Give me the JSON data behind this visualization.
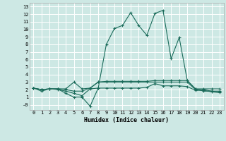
{
  "xlabel": "Humidex (Indice chaleur)",
  "bg_color": "#cde8e4",
  "grid_color": "#ffffff",
  "line_color": "#1a6b5a",
  "xlim": [
    -0.5,
    23.5
  ],
  "ylim": [
    -0.7,
    13.5
  ],
  "xticks": [
    0,
    1,
    2,
    3,
    4,
    5,
    6,
    7,
    8,
    9,
    10,
    11,
    12,
    13,
    14,
    15,
    16,
    17,
    18,
    19,
    20,
    21,
    22,
    23
  ],
  "ytick_vals": [
    0,
    1,
    2,
    3,
    4,
    5,
    6,
    7,
    8,
    9,
    10,
    11,
    12,
    13
  ],
  "ytick_labels": [
    "-0",
    "1",
    "2",
    "3",
    "4",
    "5",
    "6",
    "7",
    "8",
    "9",
    "10",
    "11",
    "12",
    "13"
  ],
  "series": [
    [
      2.2,
      2.0,
      2.1,
      2.1,
      2.1,
      3.0,
      2.1,
      2.2,
      3.0,
      3.1,
      3.1,
      3.1,
      3.1,
      3.1,
      3.1,
      3.2,
      3.2,
      3.2,
      3.2,
      3.2,
      2.1,
      2.1,
      2.1,
      2.1
    ],
    [
      2.2,
      2.0,
      2.1,
      2.1,
      1.5,
      1.0,
      1.0,
      -0.2,
      2.2,
      8.0,
      10.1,
      10.5,
      12.2,
      10.5,
      9.2,
      12.1,
      12.5,
      6.1,
      8.9,
      3.2,
      2.1,
      1.8,
      1.8,
      1.7
    ],
    [
      2.2,
      1.8,
      2.1,
      2.0,
      1.8,
      1.5,
      1.2,
      2.1,
      2.2,
      2.2,
      2.2,
      2.2,
      2.2,
      2.2,
      2.3,
      2.8,
      2.5,
      2.5,
      2.5,
      2.4,
      1.9,
      1.9,
      1.7,
      1.6
    ],
    [
      2.2,
      2.0,
      2.1,
      2.1,
      2.0,
      1.8,
      1.8,
      2.2,
      3.0,
      3.0,
      3.0,
      3.0,
      3.0,
      3.0,
      3.0,
      3.0,
      3.0,
      3.0,
      3.0,
      3.0,
      2.0,
      2.0,
      1.8,
      1.8
    ]
  ],
  "xlabel_fontsize": 6.0,
  "tick_fontsize": 5.0
}
